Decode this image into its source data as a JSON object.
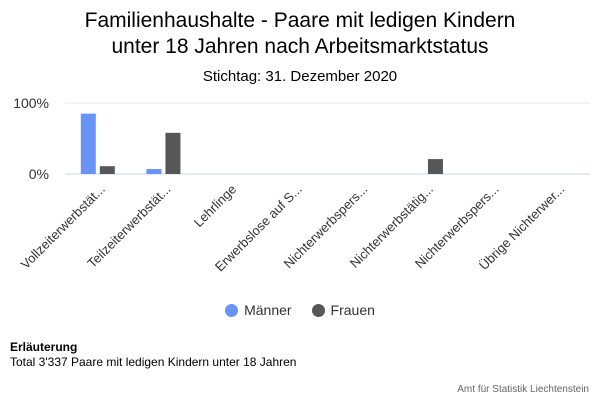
{
  "chart_data": {
    "type": "bar",
    "title": "Familienhaushalte - Paare mit ledigen Kindern\nunter 18 Jahren nach Arbeitsmarktstatus",
    "subtitle": "Stichtag: 31. Dezember 2020",
    "categories": [
      "Vollzeiterwerbstät...",
      "Teilzeiterwerbstät...",
      "Lehrlinge",
      "Erwerbslose auf S...",
      "Nichterwerbspers...",
      "Nichterwerbstätig...",
      "Nichterwerbspers...",
      "Übrige Nichterwer..."
    ],
    "series": [
      {
        "name": "Männer",
        "color": "#6a93f8",
        "values": [
          85,
          7,
          0,
          0,
          0,
          0,
          0,
          0
        ]
      },
      {
        "name": "Frauen",
        "color": "#575757",
        "values": [
          11,
          58,
          0,
          0,
          0,
          21,
          0,
          0
        ]
      }
    ],
    "yticks": [
      "0%",
      "100%"
    ],
    "ylim": [
      0,
      100
    ],
    "grid": true,
    "legend": "bottom-center"
  },
  "note": {
    "title": "Erläuterung",
    "text": "Total 3'337 Paare mit ledigen Kindern unter 18 Jahren"
  },
  "credits": "Amt für Statistik Liechtenstein"
}
